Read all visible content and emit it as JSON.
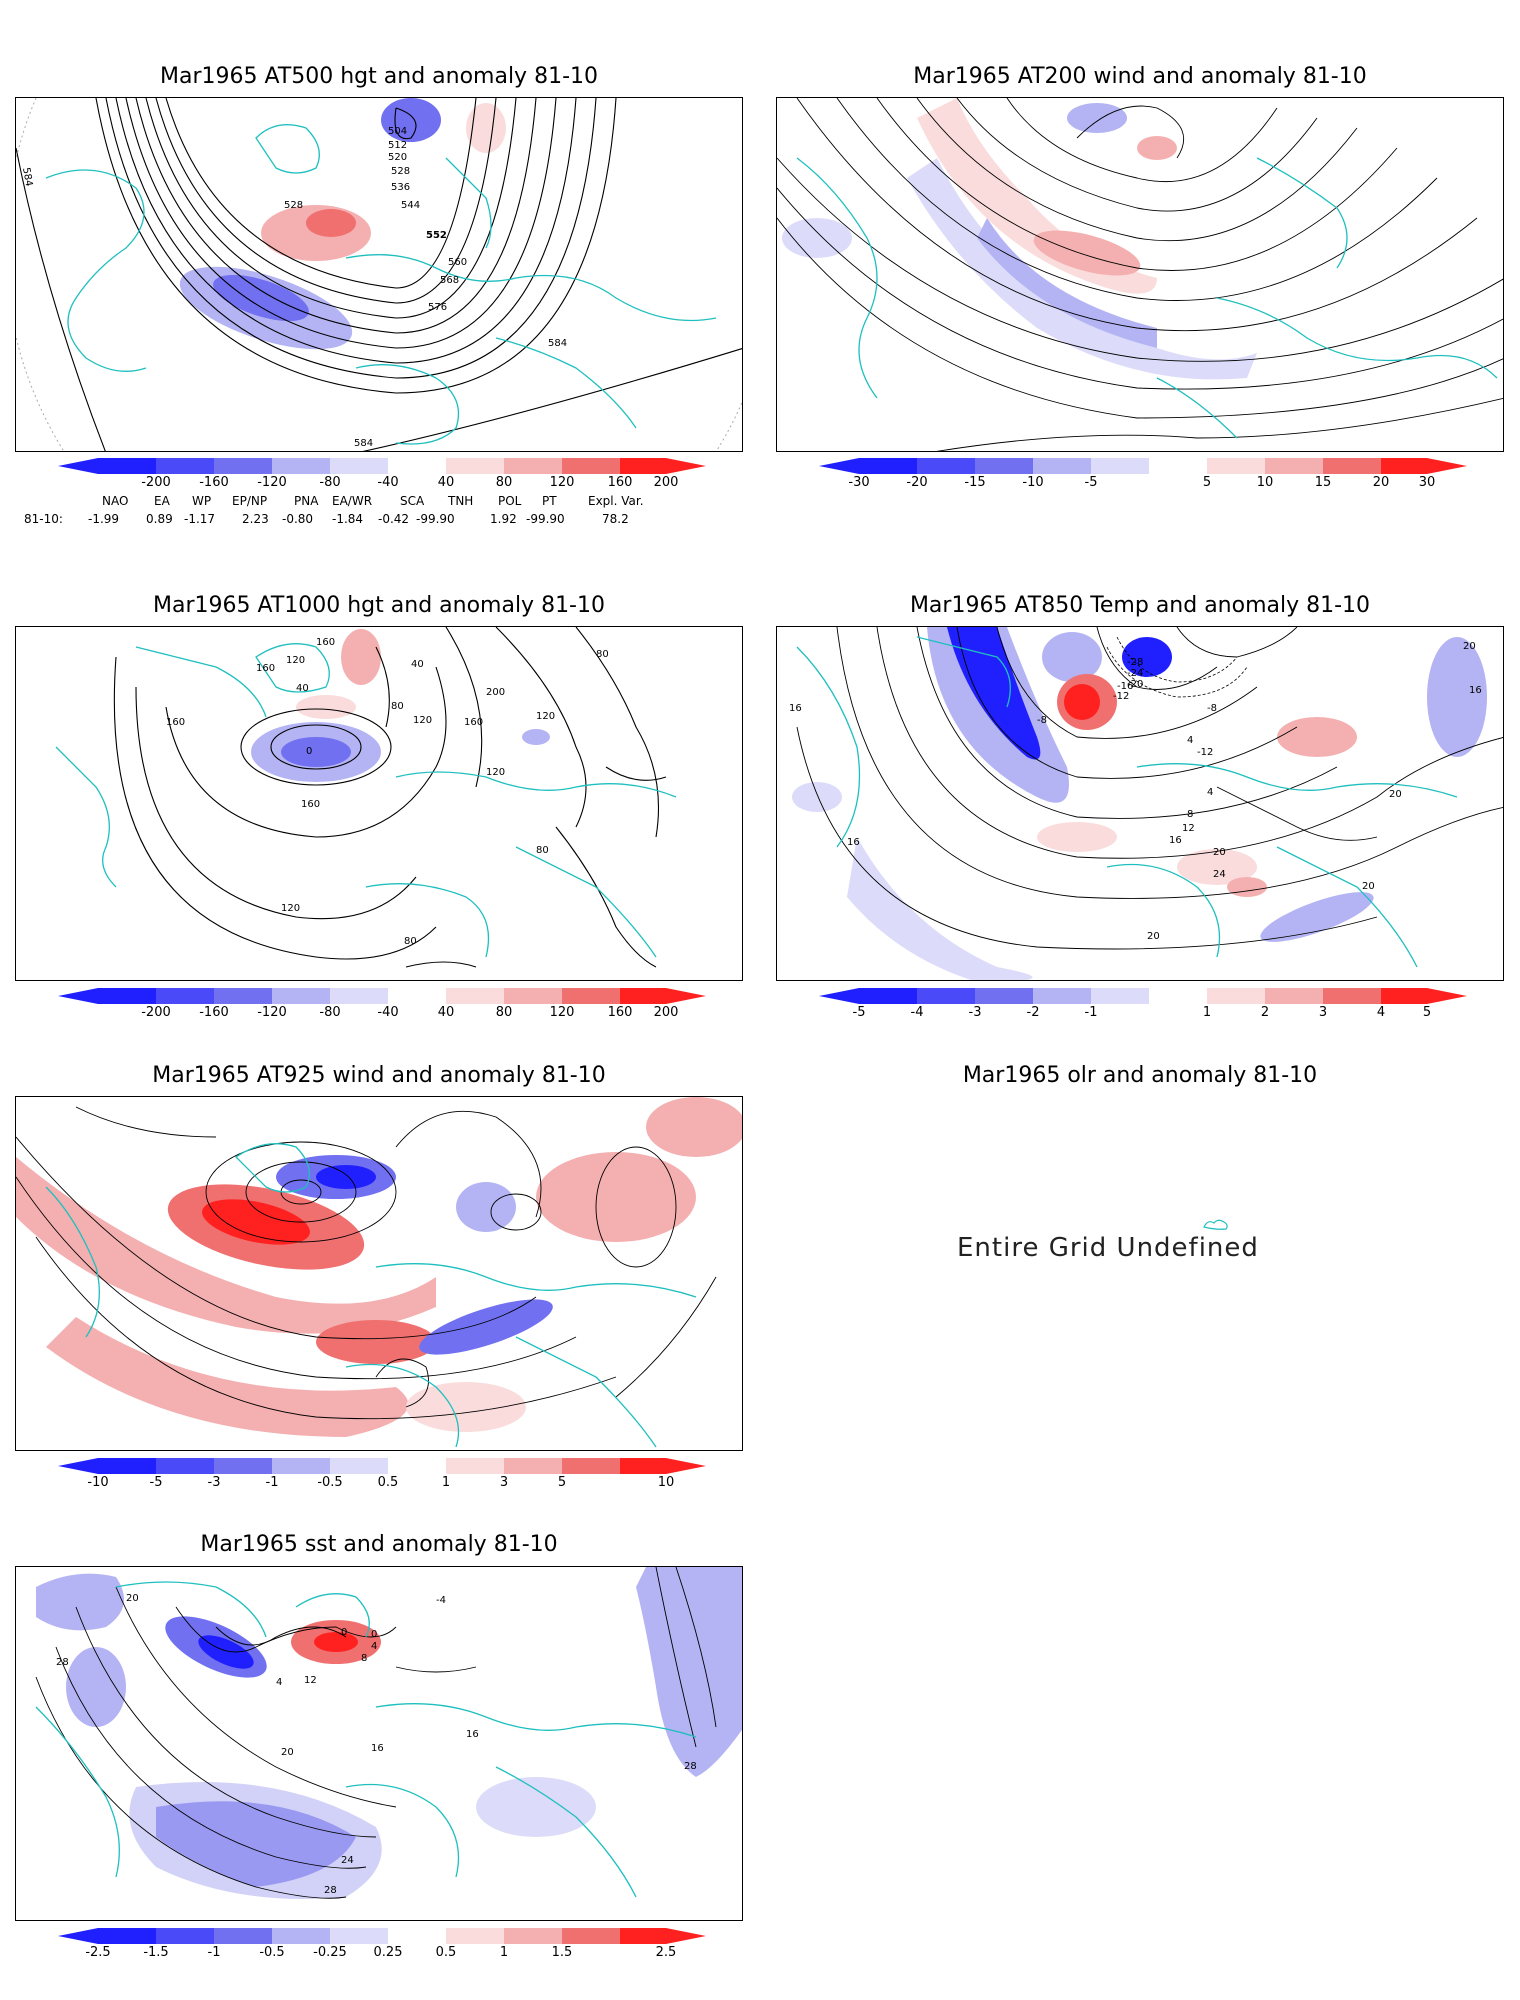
{
  "panels": {
    "p500": {
      "title": "Mar1965 AT500 hgt and anomaly 81-10",
      "contour_labels": [
        "504",
        "512",
        "520",
        "528",
        "536",
        "544",
        "552",
        "560",
        "568",
        "576",
        "584",
        "528",
        "584",
        "584"
      ],
      "colorbar": [
        "-200",
        "-160",
        "-120",
        "-80",
        "-40",
        "40",
        "80",
        "120",
        "160",
        "200"
      ]
    },
    "p200": {
      "title": "Mar1965 AT200 wind and anomaly 81-10",
      "colorbar": [
        "-30",
        "-20",
        "-15",
        "-10",
        "-5",
        "5",
        "10",
        "15",
        "20",
        "30"
      ]
    },
    "p1000": {
      "title": "Mar1965 AT1000 hgt and anomaly 81-10",
      "contour_labels": [
        "160",
        "120",
        "40",
        "80",
        "200",
        "120",
        "160",
        "120",
        "80",
        "0",
        "40",
        "160",
        "160",
        "80",
        "120",
        "80",
        "160",
        "120"
      ],
      "colorbar": [
        "-200",
        "-160",
        "-120",
        "-80",
        "-40",
        "40",
        "80",
        "120",
        "160",
        "200"
      ]
    },
    "p850": {
      "title": "Mar1965 AT850 Temp and anomaly 81-10",
      "contour_labels": [
        "-28",
        "-24",
        "-20",
        "-12",
        "-16",
        "-8",
        "-8",
        "4",
        "4",
        "-12",
        "8",
        "12",
        "16",
        "20",
        "24",
        "20",
        "16",
        "16",
        "20",
        "20",
        "16",
        "20"
      ],
      "colorbar": [
        "-5",
        "-4",
        "-3",
        "-2",
        "-1",
        "1",
        "2",
        "3",
        "4",
        "5"
      ]
    },
    "p925": {
      "title": "Mar1965 AT925 wind and anomaly 81-10",
      "colorbar": [
        "-10",
        "-5",
        "-3",
        "-1",
        "-0.5",
        "0.5",
        "1",
        "3",
        "5",
        "10"
      ]
    },
    "polr": {
      "title": "Mar1965 olr and anomaly 81-10",
      "message": "Entire Grid Undefined"
    },
    "psst": {
      "title": "Mar1965 sst and anomaly 81-10",
      "contour_labels": [
        "20",
        "28",
        "0",
        "0",
        "4",
        "8",
        "12",
        "4",
        "-4",
        "16",
        "16",
        "20",
        "24",
        "28",
        "28"
      ],
      "colorbar": [
        "-2.5",
        "-1.5",
        "-1",
        "-0.5",
        "-0.25",
        "0.25",
        "0.5",
        "1",
        "1.5",
        "2.5"
      ]
    }
  },
  "indices": {
    "headers": [
      "NAO",
      "EA",
      "WP",
      "EP/NP",
      "PNA",
      "EA/WR",
      "SCA",
      "TNH",
      "POL",
      "PT",
      "Expl. Var."
    ],
    "row_label": "81-10:",
    "values": [
      "-1.99",
      "0.89",
      "-1.17",
      "2.23",
      "-0.80",
      "-1.84",
      "-0.42",
      "-99.90",
      "1.92",
      "-99.90",
      "78.2"
    ]
  },
  "colors": {
    "coast": "#1fbfbf",
    "neg_strong": "#2020ff",
    "neg_mid": "#7070f0",
    "neg_weak": "#b4b4f4",
    "neg_faint": "#dcdcfa",
    "pos_faint": "#fadcdc",
    "pos_weak": "#f4b0b0",
    "pos_mid": "#f07070",
    "pos_strong": "#ff2020"
  }
}
